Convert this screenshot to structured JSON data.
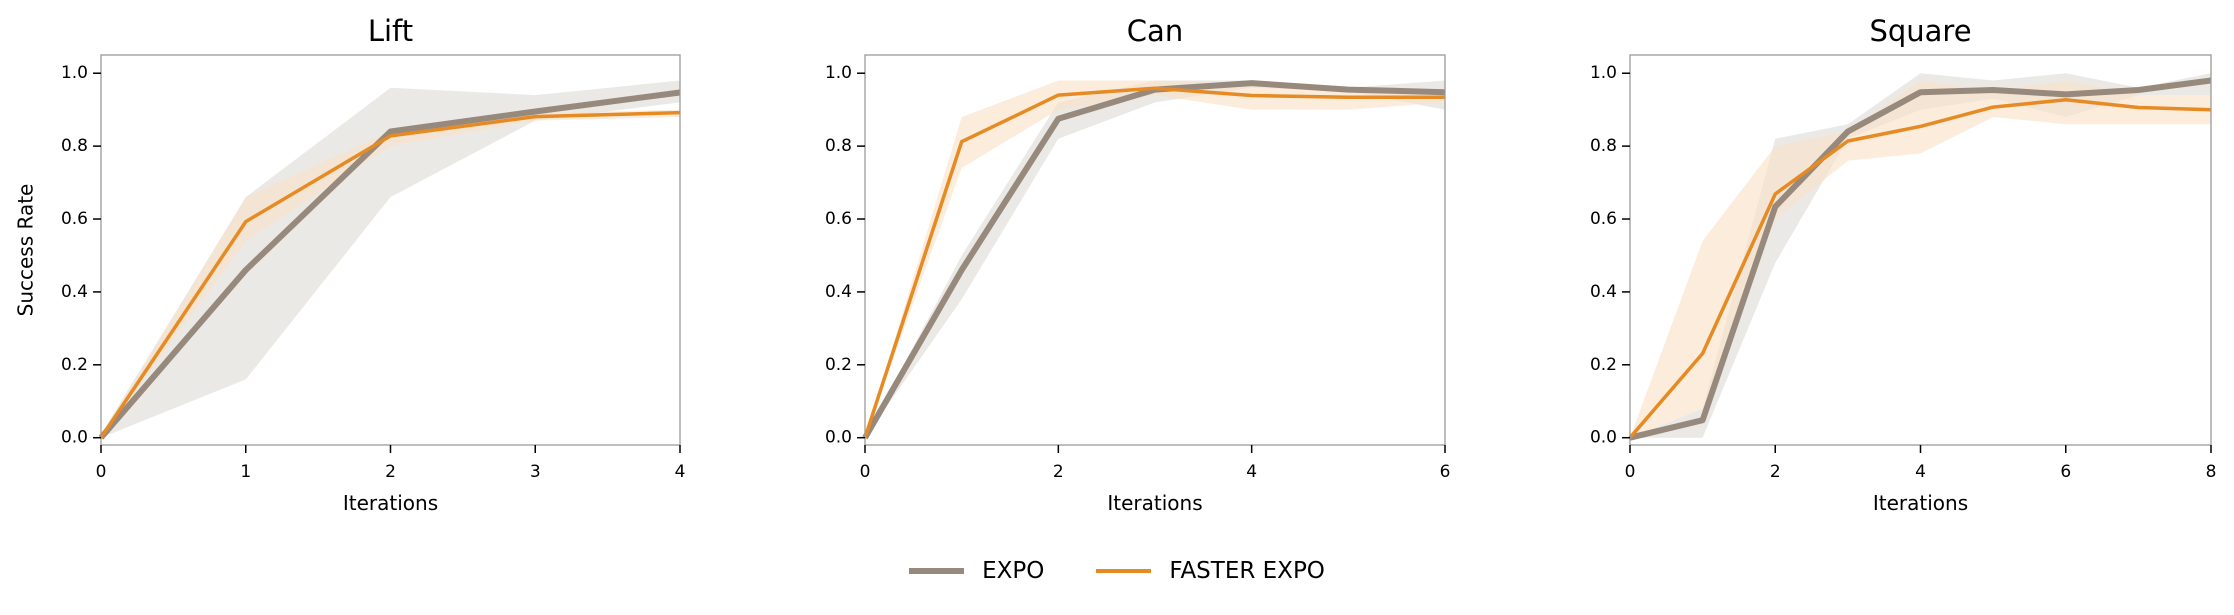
{
  "figure": {
    "ylabel": "Success Rate",
    "xlabel": "Iterations"
  },
  "legend": {
    "items": [
      {
        "label": "EXPO",
        "color": "#978a7d",
        "width": 6
      },
      {
        "label": "FASTER EXPO",
        "color": "#e68a24",
        "width": 4
      }
    ]
  },
  "colors": {
    "expo_line": "#978a7d",
    "expo_fill": "#e4e2de",
    "faster_line": "#e68a24",
    "faster_fill": "#f9e2c9",
    "axis": "#9a9a9a"
  },
  "chart_data": [
    {
      "type": "line",
      "title": "Lift",
      "xlabel": "Iterations",
      "ylabel": "Success Rate",
      "xlim": [
        0,
        4
      ],
      "ylim": [
        -0.02,
        1.05
      ],
      "xticks": [
        0,
        1,
        2,
        3,
        4
      ],
      "yticks": [
        0.0,
        0.2,
        0.4,
        0.6,
        0.8,
        1.0
      ],
      "x": [
        0,
        1,
        2,
        3,
        4
      ],
      "series": [
        {
          "name": "EXPO",
          "values": [
            0.0,
            0.46,
            0.84,
            0.895,
            0.947
          ],
          "lower": [
            0.0,
            0.16,
            0.66,
            0.87,
            0.92
          ],
          "upper": [
            0.01,
            0.66,
            0.96,
            0.94,
            0.98
          ]
        },
        {
          "name": "FASTER EXPO",
          "values": [
            0.0,
            0.593,
            0.828,
            0.881,
            0.892
          ],
          "lower": [
            0.0,
            0.54,
            0.8,
            0.87,
            0.88
          ],
          "upper": [
            0.0,
            0.66,
            0.84,
            0.89,
            0.9
          ]
        }
      ]
    },
    {
      "type": "line",
      "title": "Can",
      "xlabel": "Iterations",
      "ylabel": "",
      "xlim": [
        0,
        6
      ],
      "ylim": [
        -0.02,
        1.05
      ],
      "xticks": [
        0,
        2,
        4,
        6
      ],
      "yticks": [
        0.0,
        0.2,
        0.4,
        0.6,
        0.8,
        1.0
      ],
      "x": [
        0,
        1,
        2,
        3,
        4,
        5,
        6
      ],
      "series": [
        {
          "name": "EXPO",
          "values": [
            0.0,
            0.46,
            0.875,
            0.955,
            0.973,
            0.955,
            0.948
          ],
          "lower": [
            0.0,
            0.38,
            0.82,
            0.92,
            0.96,
            0.95,
            0.9
          ],
          "upper": [
            0.0,
            0.5,
            0.92,
            0.98,
            0.98,
            0.96,
            0.98
          ]
        },
        {
          "name": "FASTER EXPO",
          "values": [
            0.0,
            0.812,
            0.94,
            0.959,
            0.939,
            0.934,
            0.934
          ],
          "lower": [
            0.0,
            0.74,
            0.9,
            0.94,
            0.9,
            0.9,
            0.92
          ],
          "upper": [
            0.0,
            0.88,
            0.98,
            0.98,
            0.97,
            0.96,
            0.95
          ]
        }
      ]
    },
    {
      "type": "line",
      "title": "Square",
      "xlabel": "Iterations",
      "ylabel": "",
      "xlim": [
        0,
        8
      ],
      "ylim": [
        -0.02,
        1.05
      ],
      "xticks": [
        0,
        2,
        4,
        6,
        8
      ],
      "yticks": [
        0.0,
        0.2,
        0.4,
        0.6,
        0.8,
        1.0
      ],
      "x": [
        0,
        1,
        2,
        3,
        4,
        5,
        6,
        7,
        8
      ],
      "series": [
        {
          "name": "EXPO",
          "values": [
            0.0,
            0.048,
            0.634,
            0.84,
            0.948,
            0.954,
            0.942,
            0.954,
            0.98
          ],
          "lower": [
            0.0,
            0.0,
            0.48,
            0.82,
            0.9,
            0.93,
            0.88,
            0.94,
            0.94
          ],
          "upper": [
            0.0,
            0.08,
            0.82,
            0.86,
            1.0,
            0.98,
            1.0,
            0.96,
            1.0
          ]
        },
        {
          "name": "FASTER EXPO",
          "values": [
            0.0,
            0.231,
            0.669,
            0.814,
            0.854,
            0.907,
            0.927,
            0.906,
            0.9
          ],
          "lower": [
            0.0,
            0.08,
            0.6,
            0.76,
            0.78,
            0.88,
            0.86,
            0.86,
            0.86
          ],
          "upper": [
            0.0,
            0.54,
            0.8,
            0.84,
            0.98,
            0.95,
            0.98,
            0.94,
            0.94
          ]
        }
      ]
    }
  ]
}
